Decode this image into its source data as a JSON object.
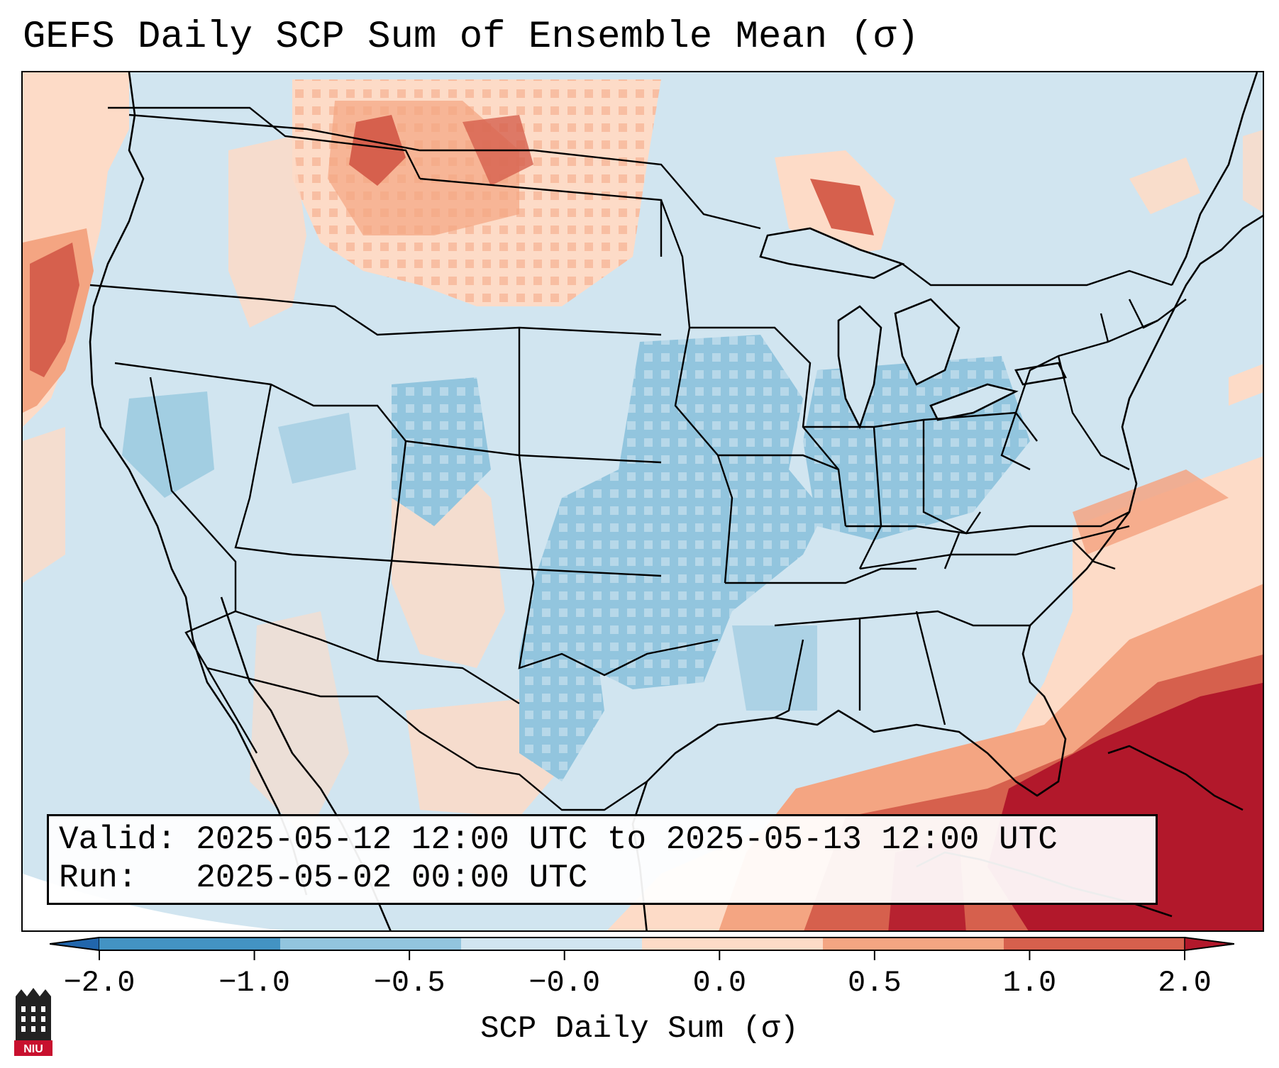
{
  "title": "GEFS Daily SCP Sum of Ensemble Mean (σ)",
  "valid_line": "Valid: 2025-05-12 12:00 UTC to 2025-05-13 12:00 UTC",
  "run_line": "Run:   2025-05-02 00:00 UTC",
  "colorbar": {
    "label": "SCP Daily Sum (σ)",
    "ticks": [
      "−2.0",
      "−1.0",
      "−0.5",
      "−0.0",
      "0.0",
      "0.5",
      "1.0",
      "2.0"
    ],
    "colors": [
      "#2166ac",
      "#4393c3",
      "#92c5de",
      "#d1e5f0",
      "#fddbc7",
      "#f4a582",
      "#d6604d",
      "#b2182b"
    ]
  },
  "logo": {
    "text": "NIU"
  },
  "colors": {
    "background_field": "#d1e5f0",
    "state_lines": "#000000"
  }
}
